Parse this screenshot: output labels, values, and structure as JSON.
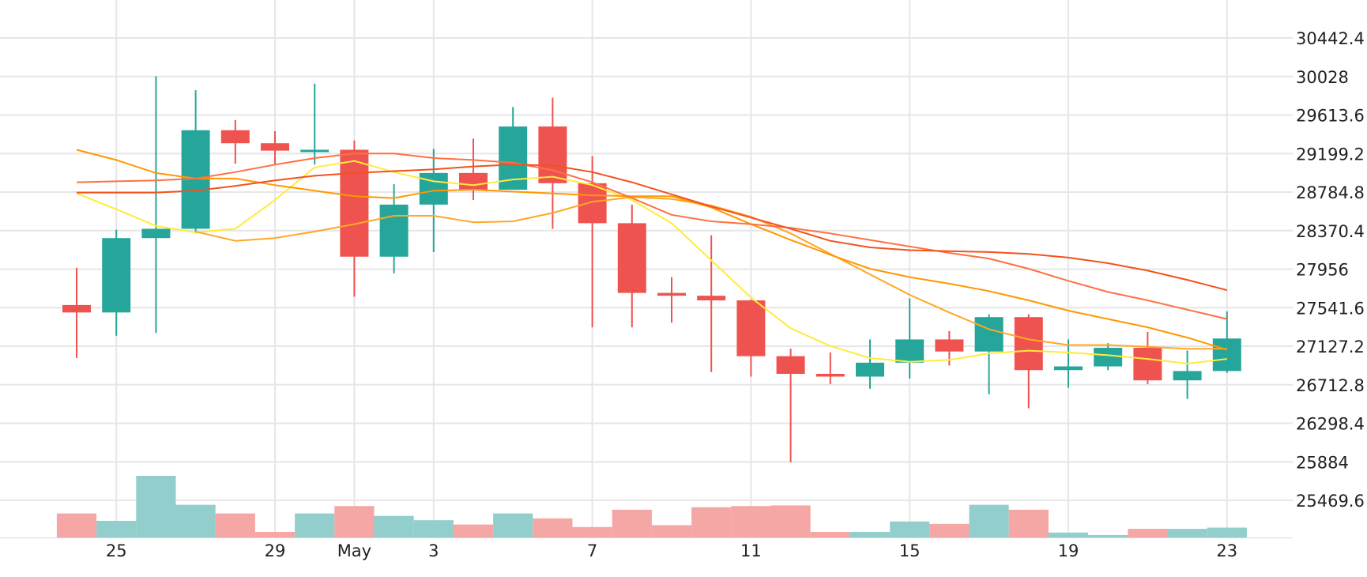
{
  "chart_data": {
    "type": "candlestick",
    "x_ticks": [
      "25",
      "29",
      "May",
      "3",
      "7",
      "11",
      "15",
      "19",
      "23"
    ],
    "x_tick_days": [
      2,
      6,
      8,
      10,
      14,
      18,
      22,
      26,
      30
    ],
    "y_ticks": [
      "30442.4",
      "30028",
      "29613.6",
      "29199.2",
      "28784.8",
      "28370.4",
      "27956",
      "27541.6",
      "27127.2",
      "26712.8",
      "26298.4",
      "25884",
      "25469.6"
    ],
    "y_tick_values": [
      30442.4,
      30028,
      29613.6,
      29199.2,
      28784.8,
      28370.4,
      27956,
      27541.6,
      27127.2,
      26712.8,
      26298.4,
      25884,
      25469.6
    ],
    "grid": true,
    "candles": [
      {
        "open": 27570,
        "high": 27970,
        "low": 27000,
        "close": 27490
      },
      {
        "open": 27490,
        "high": 28380,
        "low": 27240,
        "close": 28290
      },
      {
        "open": 28290,
        "high": 30030,
        "low": 27270,
        "close": 28390
      },
      {
        "open": 28390,
        "high": 29880,
        "low": 28340,
        "close": 29450
      },
      {
        "open": 29450,
        "high": 29560,
        "low": 29090,
        "close": 29310
      },
      {
        "open": 29310,
        "high": 29440,
        "low": 29080,
        "close": 29230
      },
      {
        "open": 29230,
        "high": 29950,
        "low": 29080,
        "close": 29240
      },
      {
        "open": 29240,
        "high": 29340,
        "low": 27660,
        "close": 28090
      },
      {
        "open": 28090,
        "high": 28870,
        "low": 27910,
        "close": 28650
      },
      {
        "open": 28650,
        "high": 29250,
        "low": 28140,
        "close": 28990
      },
      {
        "open": 28990,
        "high": 29360,
        "low": 28700,
        "close": 28810
      },
      {
        "open": 28810,
        "high": 29700,
        "low": 28810,
        "close": 29490
      },
      {
        "open": 29490,
        "high": 29800,
        "low": 28390,
        "close": 28880
      },
      {
        "open": 28880,
        "high": 29170,
        "low": 27330,
        "close": 28450
      },
      {
        "open": 28450,
        "high": 28650,
        "low": 27330,
        "close": 27700
      },
      {
        "open": 27700,
        "high": 27870,
        "low": 27380,
        "close": 27670
      },
      {
        "open": 27670,
        "high": 28320,
        "low": 26850,
        "close": 27620
      },
      {
        "open": 27620,
        "high": 27630,
        "low": 26800,
        "close": 27020
      },
      {
        "open": 27020,
        "high": 27100,
        "low": 25880,
        "close": 26830
      },
      {
        "open": 26830,
        "high": 27060,
        "low": 26720,
        "close": 26800
      },
      {
        "open": 26800,
        "high": 27200,
        "low": 26670,
        "close": 26950
      },
      {
        "open": 26950,
        "high": 27640,
        "low": 26780,
        "close": 27200
      },
      {
        "open": 27200,
        "high": 27290,
        "low": 26920,
        "close": 27070
      },
      {
        "open": 27070,
        "high": 27470,
        "low": 26610,
        "close": 27440
      },
      {
        "open": 27440,
        "high": 27470,
        "low": 26460,
        "close": 26870
      },
      {
        "open": 26870,
        "high": 27200,
        "low": 26680,
        "close": 26910
      },
      {
        "open": 26910,
        "high": 27160,
        "low": 26870,
        "close": 27110
      },
      {
        "open": 27110,
        "high": 27280,
        "low": 26720,
        "close": 26760
      },
      {
        "open": 26760,
        "high": 27080,
        "low": 26560,
        "close": 26860
      },
      {
        "open": 26860,
        "high": 27500,
        "low": 26840,
        "close": 27210
      }
    ],
    "volume": [
      0.39,
      0.27,
      1.0,
      0.53,
      0.39,
      0.09,
      0.39,
      0.51,
      0.35,
      0.28,
      0.21,
      0.39,
      0.31,
      0.17,
      0.45,
      0.2,
      0.49,
      0.51,
      0.52,
      0.09,
      0.09,
      0.26,
      0.22,
      0.53,
      0.45,
      0.08,
      0.04,
      0.14,
      0.14,
      0.16
    ],
    "moving_averages": [
      {
        "color": "#ffeb3b",
        "values": [
          28770,
          28600,
          28420,
          28350,
          28390,
          28700,
          29050,
          29120,
          29000,
          28900,
          28860,
          28920,
          28950,
          28860,
          28700,
          28450,
          28050,
          27650,
          27320,
          27130,
          27000,
          26960,
          26980,
          27050,
          27080,
          27060,
          27030,
          26990,
          26940,
          26990
        ]
      },
      {
        "color": "#ffa726",
        "values": [
          28770,
          null,
          null,
          28360,
          28260,
          28290,
          28360,
          28440,
          28530,
          28530,
          28460,
          28470,
          28560,
          28680,
          28730,
          28710,
          28640,
          28520,
          28340,
          28120,
          27900,
          27680,
          27490,
          27310,
          27200,
          27140,
          27140,
          27120,
          27100,
          27100
        ]
      },
      {
        "color": "#ff9800",
        "values": [
          29240,
          29130,
          28990,
          28930,
          28930,
          28860,
          28800,
          28740,
          28720,
          28800,
          28810,
          28790,
          28770,
          28750,
          28740,
          28740,
          28620,
          28440,
          28270,
          28110,
          27960,
          27870,
          27800,
          27720,
          27620,
          27510,
          27420,
          27330,
          27220,
          27090
        ]
      },
      {
        "color": "#ff7043",
        "values": [
          28890,
          28900,
          28910,
          28930,
          29000,
          29080,
          29150,
          29200,
          29200,
          29150,
          29130,
          29100,
          29020,
          28890,
          28720,
          28540,
          28470,
          28440,
          28400,
          28340,
          28270,
          28200,
          28130,
          28070,
          27960,
          27830,
          27710,
          27620,
          27520,
          27420
        ]
      },
      {
        "color": "#f4511e",
        "values": [
          28780,
          28780,
          28780,
          28800,
          28850,
          28910,
          28960,
          28990,
          29010,
          29030,
          29060,
          29080,
          29070,
          29000,
          28890,
          28760,
          28630,
          28510,
          28390,
          28260,
          28190,
          28160,
          28150,
          28140,
          28120,
          28080,
          28020,
          27940,
          27840,
          27730
        ]
      }
    ],
    "up_color": "#26a69a",
    "down_color": "#ef5350",
    "volume_up_color": "#92cfcc",
    "volume_down_color": "#f5a7a5"
  }
}
